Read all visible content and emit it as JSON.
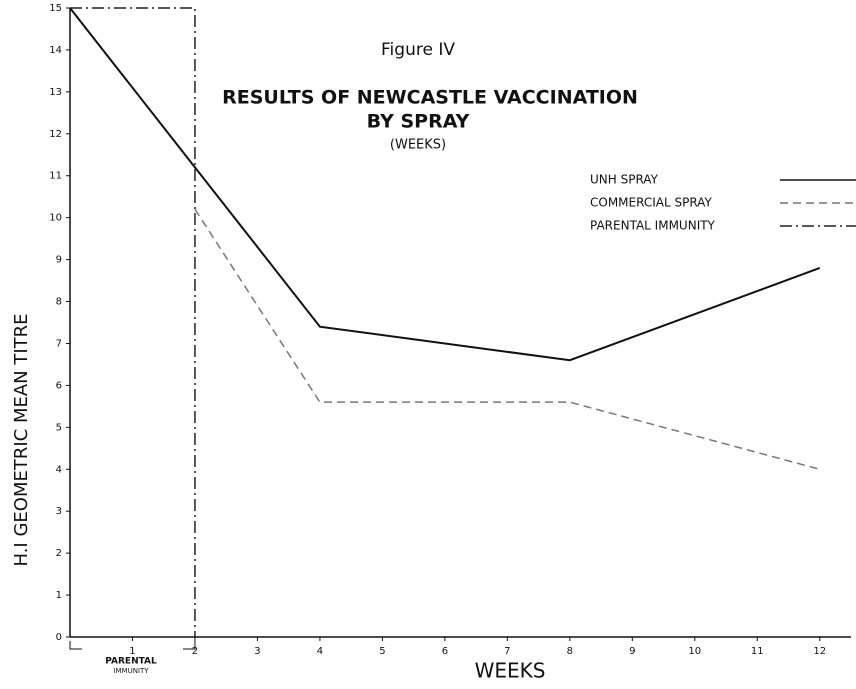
{
  "chart_data": {
    "type": "line",
    "title": "RESULTS OF NEWCASTLE VACCINATION",
    "subtitle": "BY SPRAY",
    "figure_label": "Figure IV",
    "unit_note": "(WEEKS)",
    "x_label": "WEEKS",
    "y_label": "H.I GEOMETRIC MEAN TITRE",
    "annotation": [
      "PARENTAL",
      "IMMUNITY"
    ],
    "xlim": [
      0,
      12.5
    ],
    "xticks": [
      1,
      2,
      3,
      4,
      5,
      6,
      7,
      8,
      9,
      10,
      11,
      12
    ],
    "ylim": [
      0,
      15
    ],
    "yticks": [
      0,
      1,
      2,
      3,
      4,
      5,
      6,
      7,
      8,
      9,
      10,
      11,
      12,
      13,
      14,
      15
    ],
    "series": [
      {
        "name": "UNH SPRAY",
        "color": "#111",
        "style": "solid",
        "x": [
          0,
          2,
          4,
          8,
          12
        ],
        "values": [
          15,
          11.2,
          7.4,
          6.6,
          8.8
        ]
      },
      {
        "name": "COMMERCIAL SPRAY",
        "color": "#777",
        "style": "dashed",
        "x": [
          2,
          4,
          8,
          12
        ],
        "values": [
          10.2,
          5.6,
          5.6,
          4
        ]
      },
      {
        "name": "PARENTAL IMMUNITY",
        "color": "#222",
        "style": "dashdot",
        "x": [
          0,
          2,
          2
        ],
        "values": [
          15,
          15,
          0
        ]
      }
    ]
  }
}
